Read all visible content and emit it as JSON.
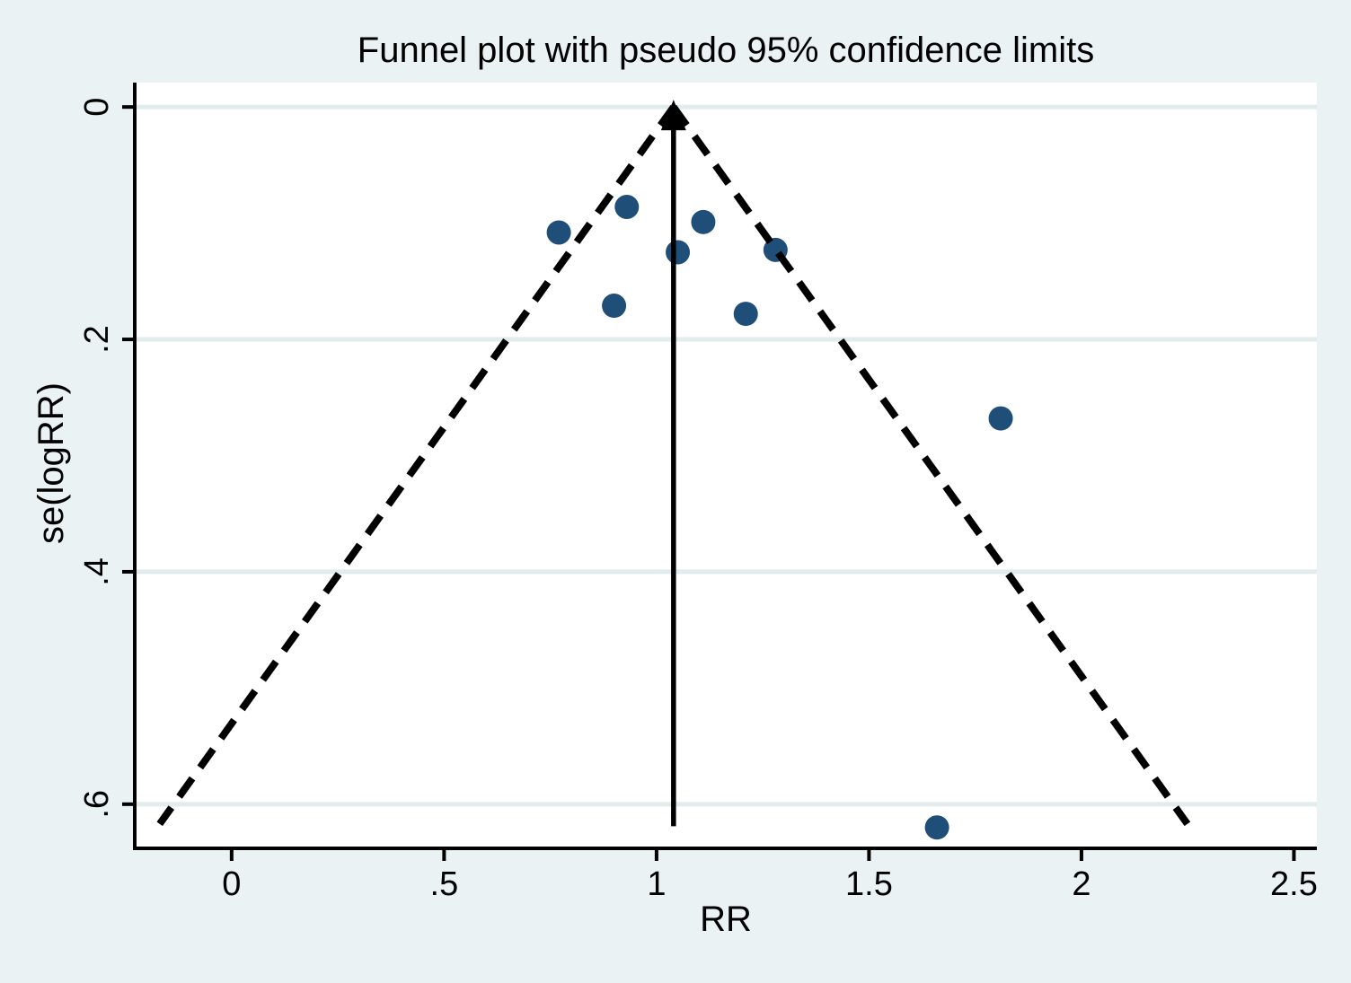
{
  "title": "Funnel plot with pseudo 95% confidence limits",
  "chart_data": {
    "type": "scatter",
    "title": "Funnel plot with pseudo 95% confidence limits",
    "xlabel": "RR",
    "ylabel": "se(logRR)",
    "x_ticks": {
      "values": [
        0,
        0.5,
        1,
        1.5,
        2,
        2.5
      ],
      "labels": [
        "0",
        ".5",
        "1",
        "1.5",
        "2",
        "2.5"
      ]
    },
    "y_ticks": {
      "values": [
        0,
        0.2,
        0.4,
        0.6
      ],
      "labels": [
        "0",
        ".2",
        ".4",
        ".6"
      ]
    },
    "xlim": [
      -0.228,
      2.554
    ],
    "ylim": [
      -0.021,
      0.638
    ],
    "y_axis_reversed": true,
    "grid": "horizontal",
    "legend": "none",
    "points": [
      {
        "rr": 0.93,
        "se": 0.086
      },
      {
        "rr": 0.77,
        "se": 0.108
      },
      {
        "rr": 1.11,
        "se": 0.099
      },
      {
        "rr": 1.05,
        "se": 0.125
      },
      {
        "rr": 1.28,
        "se": 0.123
      },
      {
        "rr": 0.9,
        "se": 0.171
      },
      {
        "rr": 1.21,
        "se": 0.178
      },
      {
        "rr": 1.81,
        "se": 0.268
      },
      {
        "rr": 1.66,
        "se": 0.62
      }
    ],
    "funnel": {
      "center_rr": 1.04,
      "ci_multiplier": 1.96,
      "se_start": 0,
      "se_end": 0.617,
      "line_style": "dashed"
    },
    "center_line": {
      "rr": 1.04,
      "se_start": 0,
      "se_end": 0.619,
      "style": "solid",
      "arrowhead": "up"
    }
  },
  "colors": {
    "background": "#eaf2f3",
    "plot_background": "#ffffff",
    "gridline": "#e2eced",
    "marker": "#1f4e78",
    "line": "#000000",
    "text": "#000000"
  }
}
